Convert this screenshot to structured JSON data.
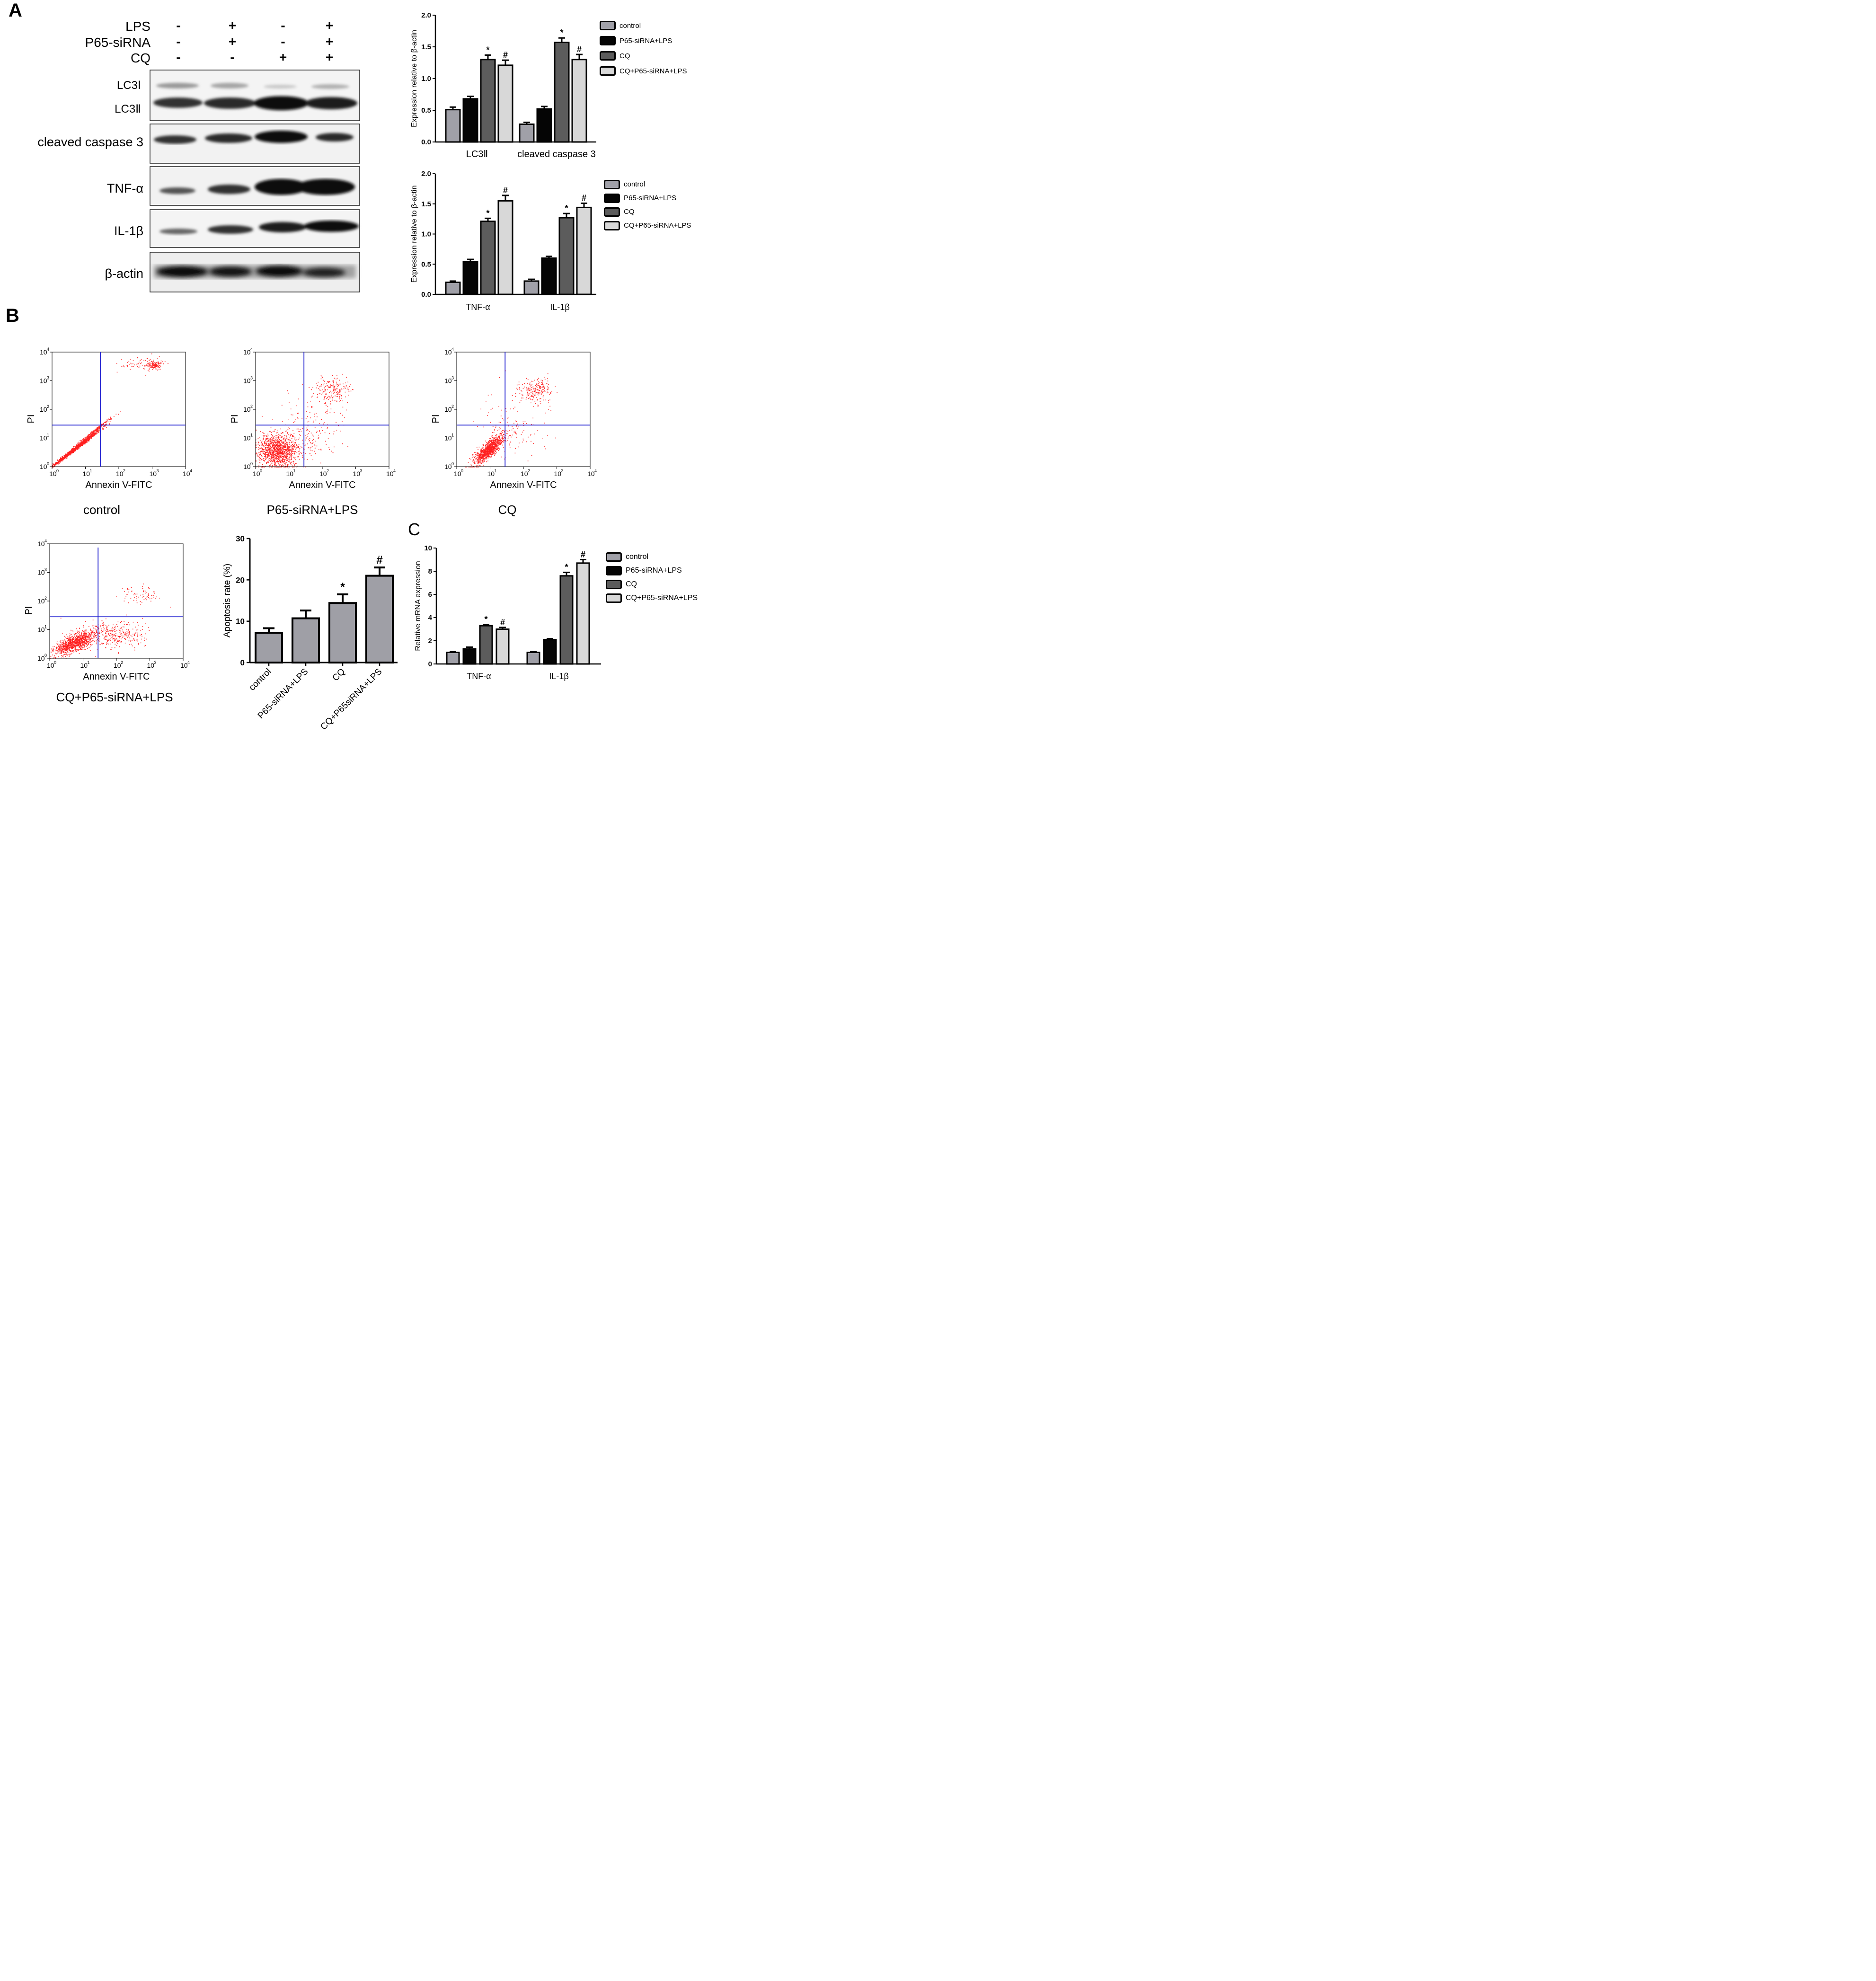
{
  "panels": {
    "a": "A",
    "b": "B",
    "c": "C"
  },
  "treatments": {
    "rows": [
      {
        "name": "LPS",
        "values": [
          "-",
          "+",
          "-",
          "+"
        ]
      },
      {
        "name": "P65-siRNA",
        "values": [
          "-",
          "+",
          "-",
          "+"
        ]
      },
      {
        "name": "CQ",
        "values": [
          "-",
          "-",
          "+",
          "+"
        ]
      }
    ]
  },
  "blots": {
    "lc3_1": "LC3Ⅰ",
    "lc3_2": "LC3Ⅱ",
    "caspase": "cleaved caspase 3",
    "tnf": "TNF-α",
    "il1b": "IL-1β",
    "actin": "β-actin"
  },
  "colors": {
    "control": "#a0a0a8",
    "p65": "#050505",
    "cq": "#5c5c5c",
    "cqp65": "#d8d8d8",
    "dots": "#ff2020",
    "gates": "#1f1fd0"
  },
  "legend": {
    "items": [
      "control",
      "P65-siRNA+LPS",
      "CQ",
      "CQ+P65-siRNA+LPS"
    ],
    "colors": [
      "#a0a0a8",
      "#050505",
      "#5c5c5c",
      "#d8d8d8"
    ]
  },
  "flow": {
    "xlabel": "Annexin V-FITC",
    "ylabel": "PI",
    "plots": [
      "control",
      "P65-siRNA+LPS",
      "CQ",
      "CQ+P65-siRNA+LPS"
    ]
  },
  "chart_data": [
    {
      "type": "bar",
      "ylabel": "Expression relative to β-actin",
      "ylim": [
        0,
        2.0
      ],
      "yticks": [
        "0.0",
        "0.5",
        "1.0",
        "1.5",
        "2.0"
      ],
      "categories": [
        "LC3Ⅱ",
        "cleaved caspase 3"
      ],
      "series": [
        {
          "name": "control",
          "values": [
            0.51,
            0.28
          ],
          "errors": [
            0.04,
            0.03
          ]
        },
        {
          "name": "P65-siRNA+LPS",
          "values": [
            0.68,
            0.52
          ],
          "errors": [
            0.04,
            0.04
          ]
        },
        {
          "name": "CQ",
          "values": [
            1.3,
            1.57
          ],
          "errors": [
            0.07,
            0.07
          ]
        },
        {
          "name": "CQ+P65-siRNA+LPS",
          "values": [
            1.21,
            1.3
          ],
          "errors": [
            0.08,
            0.08
          ]
        }
      ],
      "annotations": [
        [
          "",
          "",
          "*",
          "#"
        ],
        [
          "",
          "",
          "*",
          "#"
        ]
      ]
    },
    {
      "type": "bar",
      "ylabel": "Expression relative to β-actin",
      "ylim": [
        0,
        2.0
      ],
      "yticks": [
        "0.0",
        "0.5",
        "1.0",
        "1.5",
        "2.0"
      ],
      "categories": [
        "TNF-α",
        "IL-1β"
      ],
      "series": [
        {
          "name": "control",
          "values": [
            0.2,
            0.22
          ],
          "errors": [
            0.02,
            0.03
          ]
        },
        {
          "name": "P65-siRNA+LPS",
          "values": [
            0.54,
            0.6
          ],
          "errors": [
            0.04,
            0.03
          ]
        },
        {
          "name": "CQ",
          "values": [
            1.21,
            1.27
          ],
          "errors": [
            0.05,
            0.07
          ]
        },
        {
          "name": "CQ+P65-siRNA+LPS",
          "values": [
            1.55,
            1.44
          ],
          "errors": [
            0.09,
            0.07
          ]
        }
      ],
      "annotations": [
        [
          "",
          "",
          "*",
          "#"
        ],
        [
          "",
          "",
          "*",
          "#"
        ]
      ]
    },
    {
      "type": "bar",
      "ylabel": "Apoptosis rate (%)",
      "ylim": [
        0,
        30
      ],
      "yticks": [
        "0",
        "10",
        "20",
        "30"
      ],
      "categories": [
        "control",
        "P65-siRNA+LPS",
        "CQ",
        "CQ+P65siRNA+LPS"
      ],
      "values": [
        7.2,
        10.7,
        14.4,
        21.0
      ],
      "errors": [
        1.1,
        1.9,
        2.1,
        2.0
      ],
      "annotations": [
        "",
        "",
        "*",
        "#"
      ]
    },
    {
      "type": "bar",
      "ylabel": "Relative mRNA expression",
      "ylim": [
        0,
        10
      ],
      "yticks": [
        "0",
        "2",
        "4",
        "6",
        "8",
        "10"
      ],
      "categories": [
        "TNF-α",
        "IL-1β"
      ],
      "series": [
        {
          "name": "control",
          "values": [
            1.0,
            1.0
          ],
          "errors": [
            0.05,
            0.05
          ]
        },
        {
          "name": "P65-siRNA+LPS",
          "values": [
            1.3,
            2.1
          ],
          "errors": [
            0.15,
            0.08
          ]
        },
        {
          "name": "CQ",
          "values": [
            3.3,
            7.6
          ],
          "errors": [
            0.1,
            0.3
          ]
        },
        {
          "name": "CQ+P65-siRNA+LPS",
          "values": [
            3.0,
            8.7
          ],
          "errors": [
            0.15,
            0.3
          ]
        }
      ],
      "annotations": [
        [
          "",
          "",
          "*",
          "#"
        ],
        [
          "",
          "",
          "*",
          "#"
        ]
      ]
    }
  ]
}
